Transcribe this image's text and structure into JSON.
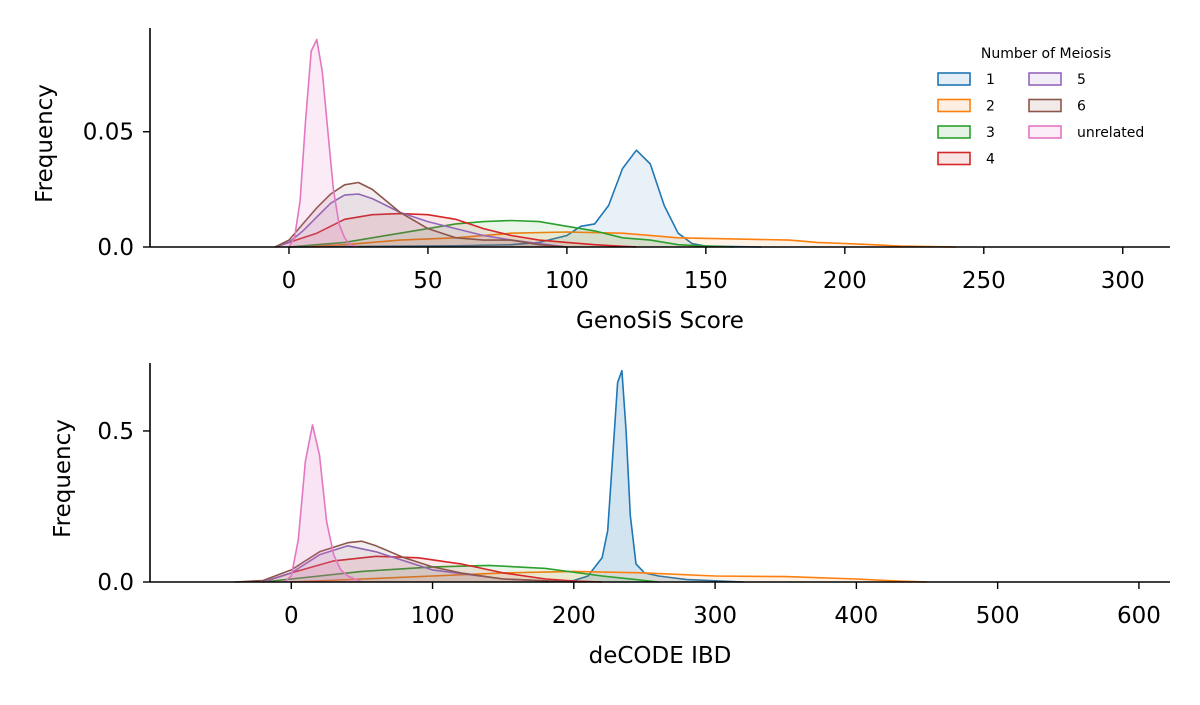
{
  "chart_data": [
    {
      "type": "area",
      "xlabel": "GenoSiS Score",
      "ylabel": "Frequency",
      "xlim": [
        -50,
        317
      ],
      "ylim": [
        0,
        0.095
      ],
      "xticks": [
        0,
        50,
        100,
        150,
        200,
        250,
        300
      ],
      "yticks": [
        0.0,
        0.05
      ],
      "ytick_labels": [
        "0.0",
        "0.05"
      ],
      "grid": false,
      "legend": {
        "title": "Number of Meiosis",
        "placement": "top-right",
        "columns": 2,
        "entries": [
          "1",
          "2",
          "3",
          "4",
          "5",
          "6",
          "unrelated"
        ]
      },
      "series": [
        {
          "name": "1",
          "color": "#1f77b4",
          "fill_opacity": 0.1,
          "x": [
            0,
            60,
            80,
            90,
            100,
            105,
            110,
            115,
            120,
            125,
            130,
            135,
            140,
            145,
            150,
            160,
            170
          ],
          "y": [
            0,
            0.0005,
            0.001,
            0.002,
            0.005,
            0.009,
            0.01,
            0.018,
            0.034,
            0.042,
            0.036,
            0.018,
            0.006,
            0.0015,
            0.0004,
            0.0002,
            0
          ]
        },
        {
          "name": "2",
          "color": "#ff7f0e",
          "fill_opacity": 0.1,
          "x": [
            0,
            20,
            40,
            60,
            80,
            100,
            120,
            140,
            160,
            180,
            190,
            200,
            210,
            220,
            240
          ],
          "y": [
            0,
            0.001,
            0.003,
            0.004,
            0.006,
            0.0065,
            0.006,
            0.004,
            0.0035,
            0.003,
            0.002,
            0.0015,
            0.001,
            0.0004,
            0
          ]
        },
        {
          "name": "3",
          "color": "#2ca02c",
          "fill_opacity": 0.1,
          "x": [
            0,
            10,
            20,
            40,
            60,
            70,
            80,
            90,
            100,
            110,
            120,
            130,
            140,
            150,
            160
          ],
          "y": [
            0,
            0.001,
            0.002,
            0.006,
            0.01,
            0.011,
            0.0115,
            0.011,
            0.009,
            0.007,
            0.004,
            0.003,
            0.001,
            0.0004,
            0
          ]
        },
        {
          "name": "4",
          "color": "#d62728",
          "fill_opacity": 0.1,
          "x": [
            -5,
            0,
            10,
            20,
            30,
            40,
            50,
            60,
            70,
            80,
            90,
            100,
            110,
            120,
            125
          ],
          "y": [
            0,
            0.002,
            0.006,
            0.012,
            0.014,
            0.0145,
            0.014,
            0.012,
            0.008,
            0.005,
            0.003,
            0.002,
            0.001,
            0.0003,
            0
          ]
        },
        {
          "name": "5",
          "color": "#9467bd",
          "fill_opacity": 0.1,
          "x": [
            -5,
            0,
            5,
            10,
            15,
            20,
            25,
            30,
            35,
            40,
            50,
            60,
            70,
            80,
            90,
            100
          ],
          "y": [
            0,
            0.002,
            0.007,
            0.013,
            0.019,
            0.0225,
            0.023,
            0.021,
            0.018,
            0.015,
            0.011,
            0.008,
            0.005,
            0.003,
            0.0015,
            0
          ]
        },
        {
          "name": "6",
          "color": "#8c564b",
          "fill_opacity": 0.1,
          "x": [
            -5,
            0,
            5,
            10,
            15,
            20,
            25,
            30,
            35,
            40,
            50,
            60,
            70,
            80,
            90,
            100
          ],
          "y": [
            0,
            0.003,
            0.01,
            0.017,
            0.023,
            0.027,
            0.028,
            0.025,
            0.02,
            0.015,
            0.008,
            0.004,
            0.003,
            0.003,
            0.001,
            0
          ]
        },
        {
          "name": "unrelated",
          "color": "#e377c2",
          "fill_opacity": 0.15,
          "x": [
            0,
            2,
            4,
            6,
            8,
            10,
            12,
            14,
            16,
            18,
            20,
            22,
            25
          ],
          "y": [
            0,
            0.004,
            0.02,
            0.055,
            0.085,
            0.09,
            0.076,
            0.05,
            0.025,
            0.01,
            0.004,
            0.001,
            0
          ]
        }
      ]
    },
    {
      "type": "area",
      "xlabel": "deCODE IBD",
      "ylabel": "Frequency",
      "xlim": [
        -100,
        622
      ],
      "ylim": [
        0,
        0.725
      ],
      "xticks": [
        0,
        100,
        200,
        300,
        400,
        500,
        600
      ],
      "yticks": [
        0.0,
        0.5
      ],
      "ytick_labels": [
        "0.0",
        "0.5"
      ],
      "grid": false,
      "series": [
        {
          "name": "1",
          "color": "#1f77b4",
          "fill_opacity": 0.2,
          "x": [
            180,
            200,
            210,
            215,
            220,
            224,
            228,
            231,
            234,
            237,
            240,
            244,
            250,
            260,
            280,
            300,
            320
          ],
          "y": [
            0,
            0.005,
            0.02,
            0.05,
            0.08,
            0.17,
            0.45,
            0.66,
            0.7,
            0.5,
            0.22,
            0.06,
            0.03,
            0.02,
            0.008,
            0.004,
            0
          ]
        },
        {
          "name": "2",
          "color": "#ff7f0e",
          "fill_opacity": 0.1,
          "x": [
            0,
            50,
            100,
            150,
            200,
            250,
            300,
            350,
            400,
            430,
            450
          ],
          "y": [
            0,
            0.01,
            0.02,
            0.03,
            0.035,
            0.03,
            0.02,
            0.018,
            0.01,
            0.003,
            0
          ]
        },
        {
          "name": "3",
          "color": "#2ca02c",
          "fill_opacity": 0.1,
          "x": [
            -20,
            0,
            50,
            100,
            140,
            180,
            220,
            250,
            260
          ],
          "y": [
            0,
            0.01,
            0.035,
            0.05,
            0.055,
            0.045,
            0.02,
            0.005,
            0
          ]
        },
        {
          "name": "4",
          "color": "#d62728",
          "fill_opacity": 0.1,
          "x": [
            -20,
            0,
            30,
            60,
            90,
            120,
            150,
            180,
            200,
            220
          ],
          "y": [
            0,
            0.03,
            0.07,
            0.085,
            0.08,
            0.06,
            0.03,
            0.01,
            0.003,
            0
          ]
        },
        {
          "name": "5",
          "color": "#9467bd",
          "fill_opacity": 0.1,
          "x": [
            -20,
            0,
            20,
            40,
            60,
            80,
            100,
            150,
            200
          ],
          "y": [
            0,
            0.03,
            0.09,
            0.12,
            0.1,
            0.07,
            0.04,
            0.01,
            0
          ]
        },
        {
          "name": "6",
          "color": "#8c564b",
          "fill_opacity": 0.1,
          "x": [
            -40,
            -20,
            0,
            20,
            40,
            50,
            60,
            80,
            100,
            120,
            150,
            200
          ],
          "y": [
            0,
            0.005,
            0.04,
            0.1,
            0.13,
            0.135,
            0.12,
            0.08,
            0.05,
            0.03,
            0.01,
            0
          ]
        },
        {
          "name": "unrelated",
          "color": "#e377c2",
          "fill_opacity": 0.2,
          "x": [
            -5,
            0,
            5,
            10,
            15,
            20,
            25,
            30,
            35,
            40,
            50
          ],
          "y": [
            0,
            0.02,
            0.14,
            0.4,
            0.52,
            0.42,
            0.2,
            0.09,
            0.04,
            0.02,
            0
          ]
        }
      ]
    }
  ]
}
